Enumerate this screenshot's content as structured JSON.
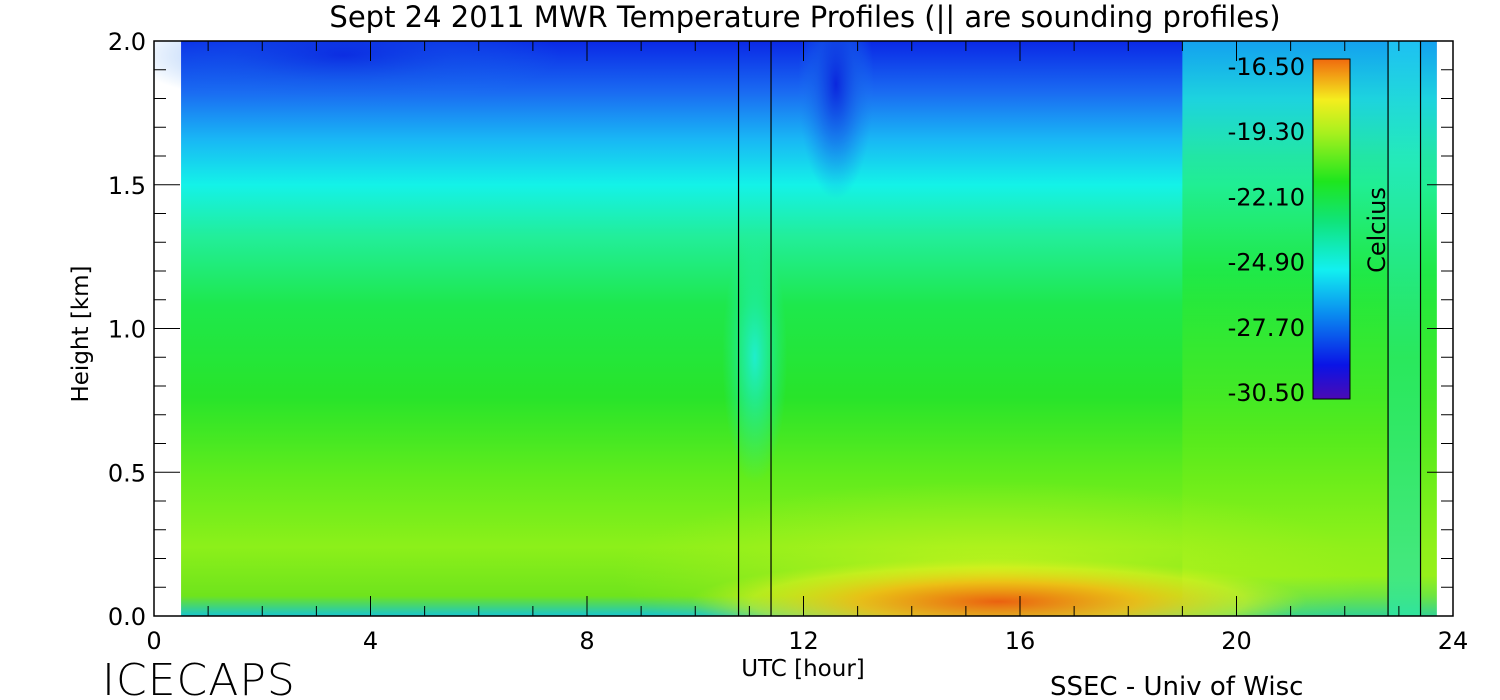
{
  "chart_data": {
    "type": "heatmap",
    "title": "Sept 24 2011 MWR Temperature Profiles (|| are sounding profiles)",
    "xlabel": "UTC [hour]",
    "ylabel": "Height [km]",
    "xlim": [
      0,
      24
    ],
    "ylim": [
      0,
      2.0
    ],
    "x_data_range": [
      0.5,
      23.7
    ],
    "x_ticks": [
      "0",
      "4",
      "8",
      "12",
      "16",
      "20",
      "24"
    ],
    "y_ticks": [
      "0.0",
      "0.5",
      "1.0",
      "1.5",
      "2.0"
    ],
    "colorbar": {
      "label": "Celcius",
      "ticks": [
        "-16.50",
        "-19.30",
        "-22.10",
        "-24.90",
        "-27.70",
        "-30.50"
      ],
      "min": -30.5,
      "max": -16.5
    },
    "sounding_profile_times": [
      10.8,
      11.4,
      22.8,
      23.4
    ],
    "surface_temperature_profile_samples": [
      {
        "height": 0.0,
        "approx_temp_early": -23.5,
        "approx_temp_afternoon": -17.0
      },
      {
        "height": 0.5,
        "approx_temp_early": -21.5,
        "approx_temp_afternoon": -20.5
      },
      {
        "height": 1.0,
        "approx_temp_early": -22.5,
        "approx_temp_afternoon": -22.0
      },
      {
        "height": 1.5,
        "approx_temp_early": -25.5,
        "approx_temp_afternoon": -24.0
      },
      {
        "height": 2.0,
        "approx_temp_early": -30.0,
        "approx_temp_afternoon": -26.5
      }
    ]
  },
  "footer": {
    "brand": "ICECAPS",
    "credit": "SSEC - Univ of Wisc"
  }
}
